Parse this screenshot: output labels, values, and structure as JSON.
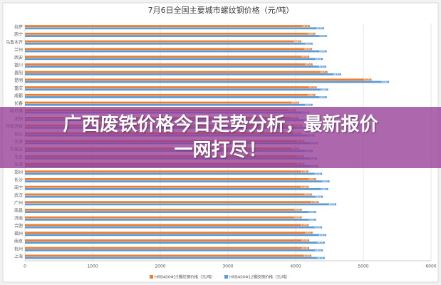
{
  "chart_data": {
    "type": "bar",
    "orientation": "horizontal",
    "title": "7月6日全国主要城市螺纹钢价格（元/吨）",
    "categories": [
      "拉萨",
      "西宁",
      "乌鲁木齐",
      "兰州",
      "西安",
      "银川",
      "贵阳",
      "昆明",
      "重庆",
      "成都",
      "长春",
      "哈尔滨",
      "沈阳",
      "呼和浩特",
      "包头",
      "太原",
      "石家庄",
      "北京",
      "天津",
      "郑州",
      "长沙",
      "南宁",
      "武汉",
      "广州",
      "南昌",
      "济南",
      "合肥",
      "福州",
      "南京",
      "杭州",
      "上海"
    ],
    "series": [
      {
        "name": "HRB400Φ25螺纹钢价格（元/吨）",
        "color": "#ed7d31",
        "values": [
          4210,
          4290,
          4080,
          4240,
          4200,
          4250,
          4470,
          5120,
          4310,
          4290,
          4050,
          4000,
          4040,
          4100,
          4080,
          4130,
          4050,
          4120,
          4130,
          4190,
          4300,
          4190,
          4240,
          4340,
          4090,
          4090,
          4190,
          4250,
          4200,
          4200,
          4230
        ]
      },
      {
        "name": "HRB400Φ12螺纹钢价格（元/吨）",
        "color": "#5b9bd5",
        "values": [
          4420,
          4460,
          4250,
          4460,
          4400,
          4450,
          4670,
          5380,
          4480,
          4460,
          4250,
          4200,
          4240,
          4300,
          4280,
          4330,
          4250,
          4320,
          4330,
          4390,
          4500,
          4480,
          4400,
          4600,
          4300,
          4300,
          4390,
          4450,
          4430,
          4400,
          4430
        ]
      }
    ],
    "xlim": [
      0,
      6000
    ],
    "xticks": [
      0,
      1000,
      2000,
      3000,
      4000,
      5000,
      6000
    ],
    "grid": true
  },
  "overlay": {
    "headline": "广西废铁价格今日走势分析，最新报价一网打尽！"
  }
}
